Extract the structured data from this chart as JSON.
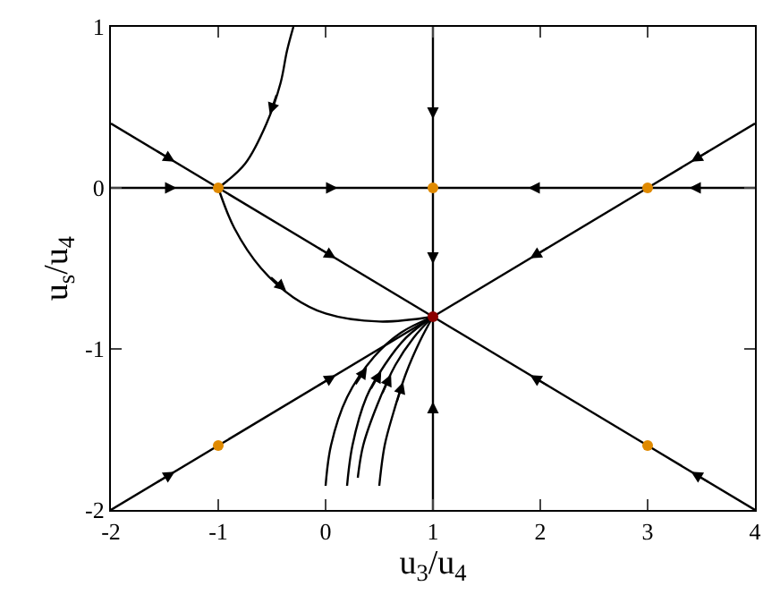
{
  "chart_data": {
    "type": "line",
    "xlabel": "u$_{3}$/u$_{4}$",
    "ylabel": "u$_{s}$/u$_{4}$",
    "xlim": [
      -2,
      4
    ],
    "ylim": [
      -2,
      1
    ],
    "xticks": [
      -2,
      -1,
      0,
      1,
      2,
      3,
      4
    ],
    "yticks": [
      -2,
      -1,
      0,
      1
    ],
    "marker": "none",
    "line_style": "solid",
    "series": [
      {
        "color": "#000000",
        "x": [
          -2,
          -1
        ],
        "values": [
          0,
          0
        ]
      },
      {
        "color": "#000000",
        "x": [
          -1,
          1
        ],
        "values": [
          0,
          0
        ]
      },
      {
        "color": "#000000",
        "x": [
          4,
          3
        ],
        "values": [
          0,
          0
        ]
      },
      {
        "color": "#000000",
        "x": [
          3,
          1
        ],
        "values": [
          0,
          0
        ]
      },
      {
        "color": "#000000",
        "x": [
          1,
          1
        ],
        "values": [
          1,
          0
        ]
      },
      {
        "color": "#000000",
        "x": [
          1,
          1
        ],
        "values": [
          0,
          -0.8
        ]
      },
      {
        "color": "#000000",
        "x": [
          1,
          1
        ],
        "values": [
          -2,
          -0.8
        ]
      },
      {
        "color": "#000000",
        "x": [
          -2,
          -1
        ],
        "values": [
          0.4,
          0
        ]
      },
      {
        "color": "#000000",
        "x": [
          -1,
          1
        ],
        "values": [
          0,
          -0.8
        ]
      },
      {
        "color": "#000000",
        "x": [
          4,
          3
        ],
        "values": [
          -2,
          -1.6
        ]
      },
      {
        "color": "#000000",
        "x": [
          3,
          1
        ],
        "values": [
          -1.6,
          -0.8
        ]
      },
      {
        "color": "#000000",
        "x": [
          -2,
          -1
        ],
        "values": [
          -2,
          -1.6
        ]
      },
      {
        "color": "#000000",
        "x": [
          -1,
          1
        ],
        "values": [
          -1.6,
          -0.8
        ]
      },
      {
        "color": "#000000",
        "x": [
          4,
          3
        ],
        "values": [
          0.4,
          0
        ]
      },
      {
        "color": "#000000",
        "x": [
          3,
          1
        ],
        "values": [
          0,
          -0.8
        ]
      },
      {
        "color": "#000000",
        "x": [
          -0.3,
          -0.36,
          -0.42,
          -0.55,
          -0.75,
          -1
        ],
        "values": [
          1,
          0.85,
          0.65,
          0.4,
          0.15,
          0
        ]
      },
      {
        "color": "#000000",
        "x": [
          -1,
          -0.85,
          -0.6,
          -0.3,
          0,
          0.5,
          1
        ],
        "values": [
          0,
          -0.25,
          -0.5,
          -0.68,
          -0.78,
          -0.83,
          -0.8
        ]
      },
      {
        "color": "#000000",
        "x": [
          0,
          0.05,
          0.2,
          0.45,
          0.7,
          1
        ],
        "values": [
          -1.85,
          -1.6,
          -1.3,
          -1.05,
          -0.9,
          -0.8
        ]
      },
      {
        "color": "#000000",
        "x": [
          0.2,
          0.25,
          0.38,
          0.55,
          0.75,
          1
        ],
        "values": [
          -1.85,
          -1.6,
          -1.3,
          -1.1,
          -0.93,
          -0.8
        ]
      },
      {
        "color": "#000000",
        "x": [
          0.3,
          0.35,
          0.48,
          0.65,
          0.82,
          1
        ],
        "values": [
          -1.8,
          -1.6,
          -1.35,
          -1.1,
          -0.93,
          -0.8
        ]
      },
      {
        "color": "#000000",
        "x": [
          0.5,
          0.55,
          0.63,
          0.75,
          0.88,
          1
        ],
        "values": [
          -1.85,
          -1.6,
          -1.4,
          -1.15,
          -0.95,
          -0.8
        ]
      },
      {
        "type": "scatter",
        "marker": "circle",
        "x": [
          -1,
          1,
          3,
          -1,
          3,
          1
        ],
        "values": [
          0,
          0,
          0,
          -1.6,
          -1.6,
          -0.8
        ],
        "colors": [
          "#e08a00",
          "#e08a00",
          "#e08a00",
          "#e08a00",
          "#e08a00",
          "#8b0000"
        ]
      }
    ]
  }
}
